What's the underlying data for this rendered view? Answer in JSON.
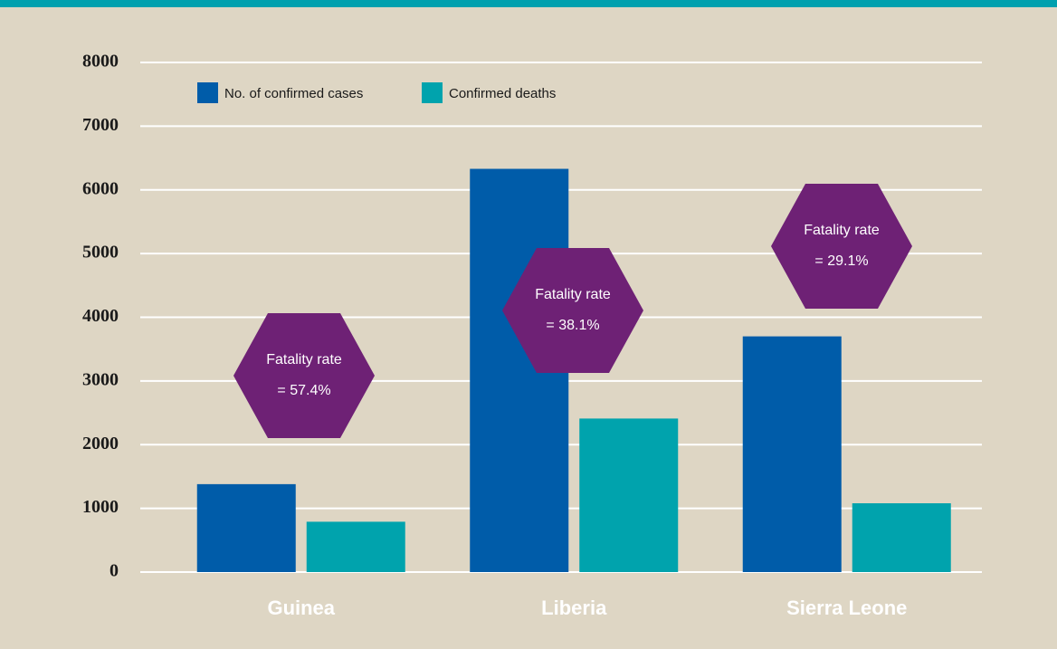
{
  "chart_data": {
    "type": "bar",
    "categories": [
      "Guinea",
      "Liberia",
      "Sierra Leone"
    ],
    "series": [
      {
        "name": "No. of confirmed cases",
        "color": "#005ca9",
        "values": [
          1380,
          6330,
          3700
        ]
      },
      {
        "name": "Confirmed deaths",
        "color": "#00a3ad",
        "values": [
          790,
          2410,
          1080
        ]
      }
    ],
    "ylim": [
      0,
      8000
    ],
    "yticks": [
      0,
      1000,
      2000,
      3000,
      4000,
      5000,
      6000,
      7000,
      8000
    ],
    "grid": true,
    "annotations": [
      {
        "lines": [
          "Fatality rate",
          "= 57.4%"
        ],
        "color": "#6e2175"
      },
      {
        "lines": [
          "Fatality rate",
          "= 38.1%"
        ],
        "color": "#6e2175"
      },
      {
        "lines": [
          "Fatality rate",
          "= 29.1%"
        ],
        "color": "#6e2175"
      }
    ]
  }
}
